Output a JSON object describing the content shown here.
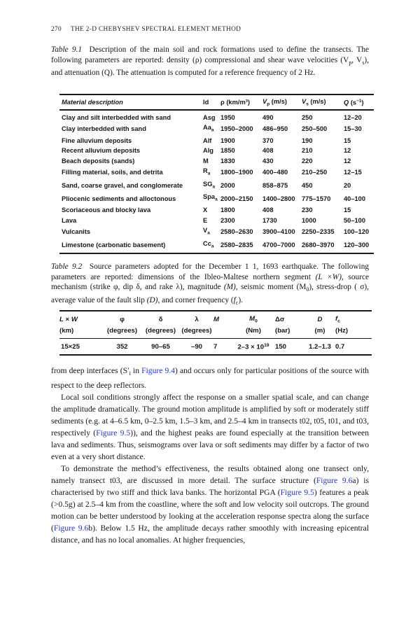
{
  "colors": {
    "link": "#2535cb",
    "text": "#141414",
    "rule": "#1a1a1a"
  },
  "page": {
    "number": "270",
    "running_head": "THE 2-D CHEBYSHEV SPECTRAL ELEMENT METHOD"
  },
  "table1": {
    "caption_html": "<i>Table 9.1</i>&nbsp; Description of the main soil and rock formations used to define the transects. The following parameters are reported: density (ρ) compressional and shear wave velocities (V<sub>p</sub>, V<sub>s</sub>), and attenuation (Q). The attenuation is computed for a reference frequency of 2 Hz.",
    "header_rows": [
      [
        "Material description",
        "Id",
        "ρ (km/m³)",
        "<i>V</i><sub>p</sub> (m/s)",
        "<i>V</i><sub>s</sub> (m/s)",
        "<i>Q</i> (s<sup>−1</sup>)"
      ]
    ],
    "rows": [
      [
        "Clay and silt interbedded with sand",
        "Asg",
        "1950",
        "490",
        "250",
        "12–20"
      ],
      [
        "Clay interbedded with sand",
        "Aa<sub>a</sub>",
        "1950–2000",
        "486–950",
        "250–500",
        "15–30"
      ],
      [
        "Fine alluvium deposits",
        "Alf",
        "1900",
        "370",
        "190",
        "15"
      ],
      [
        "Recent alluvium deposits",
        "Alg",
        "1850",
        "408",
        "210",
        "12"
      ],
      [
        "Beach deposits (sands)",
        "M",
        "1830",
        "430",
        "220",
        "12"
      ],
      [
        "Filling material, soils, and detrita",
        "R<sub>a</sub>",
        "1800–1900",
        "400–480",
        "210–250",
        "12–15"
      ],
      [
        "Sand, coarse gravel, and conglomerate",
        "SG<sub>a</sub>",
        "2000",
        "858–875",
        "450",
        "20"
      ],
      [
        "Pliocenic sediments and alloctonous",
        "Spa<sub>a</sub>",
        "2000–2150",
        "1400–2800",
        "775–1570",
        "40–100"
      ],
      [
        "Scoriaceous and blocky lava",
        "X",
        "1800",
        "408",
        "230",
        "15"
      ],
      [
        "Lava",
        "E",
        "2300",
        "1730",
        "1000",
        "50–100"
      ],
      [
        "Vulcanits",
        "V<sub>a</sub>",
        "2580–2630",
        "3900–4100",
        "2250–2335",
        "100–120"
      ],
      [
        "Limestone (carbonatic basement)",
        "Cc<sub>a</sub>",
        "2580–2835",
        "4700–7000",
        "2680–3970",
        "120–300"
      ]
    ]
  },
  "table2": {
    "caption_html": "<i>Table 9.2</i>&nbsp; Source parameters adopted for the December 1 1, 1693 earthquake. The following parameters are reported: dimensions of the Ibleo-Maltese northern segment <i>(L ×W)</i>, source mechanism (strike φ, dip δ, and rake λ), magnitude <i>(M)</i>, seismic moment (M<sub>0</sub>), stress-drop ( σ), average value of the fault slip <i>(D)</i>, and corner frequency (<i>f</i><sub>c</sub>).",
    "header_rows": [
      [
        "<i>L</i> × <i>W</i>",
        "φ",
        "δ",
        "λ",
        "<i>M</i>",
        "<i>M</i><sub>0</sub>",
        "Δσ",
        "<i>D</i>",
        "<i>f</i><sub>c</sub>"
      ],
      [
        "(km)",
        "(degrees)",
        "(degrees)",
        "(degrees)",
        "",
        "(Nm)",
        "(bar)",
        "(m)",
        "(Hz)"
      ]
    ],
    "rows": [
      [
        "15×25",
        "352",
        "90–65",
        "–90",
        "7",
        "2–3 × 10<sup>19</sup>",
        "150",
        "1.2–1.3",
        "0.7"
      ]
    ]
  },
  "paragraphs_html": [
    "from deep interfaces (S′<sub>i</sub> in <span class=\"fig\">Figure 9.4</span>) and occurs only for particular positions of the source with respect to the deep reflectors.",
    "Local soil conditions strongly affect the response on a smaller spatial scale, and can change the amplitude dramatically. The ground motion amplitude is amplified by soft or moderately stiff sediments (e.g. at 4–6.5 km, 0–2.5 km, 1.5–3 km, and 2.5–4 km in transects t02, t05, t01, and t03, respectively (<span class=\"fig\">Figure 9.5</span>)), and the highest peaks are found especially at the transition between lava and sediments. Thus, seismograms over lava or soft sediments may differ by a factor of two even at a very short distance.",
    "To demonstrate the method’s effectiveness, the results obtained along one transect only, namely transect t03, are discussed in more detail. The surface structure (<span class=\"fig\">Figure 9.6</span>a) is characterised by two stiff and thick lava banks. The horizontal PGA (<span class=\"fig\">Figure 9.5</span>) features a peak (&gt;0.5g) at 2.5–4 km from the coastline, where the soft and low velocity soil outcrops. The ground motion can be better understood by looking at the acceleration response spectra along the surface (<span class=\"fig\">Figure 9.6</span>b). Below 1.5 Hz, the amplitude decays rather smoothly with increasing epicentral distance, and has no local anomalies. At higher frequencies,"
  ]
}
